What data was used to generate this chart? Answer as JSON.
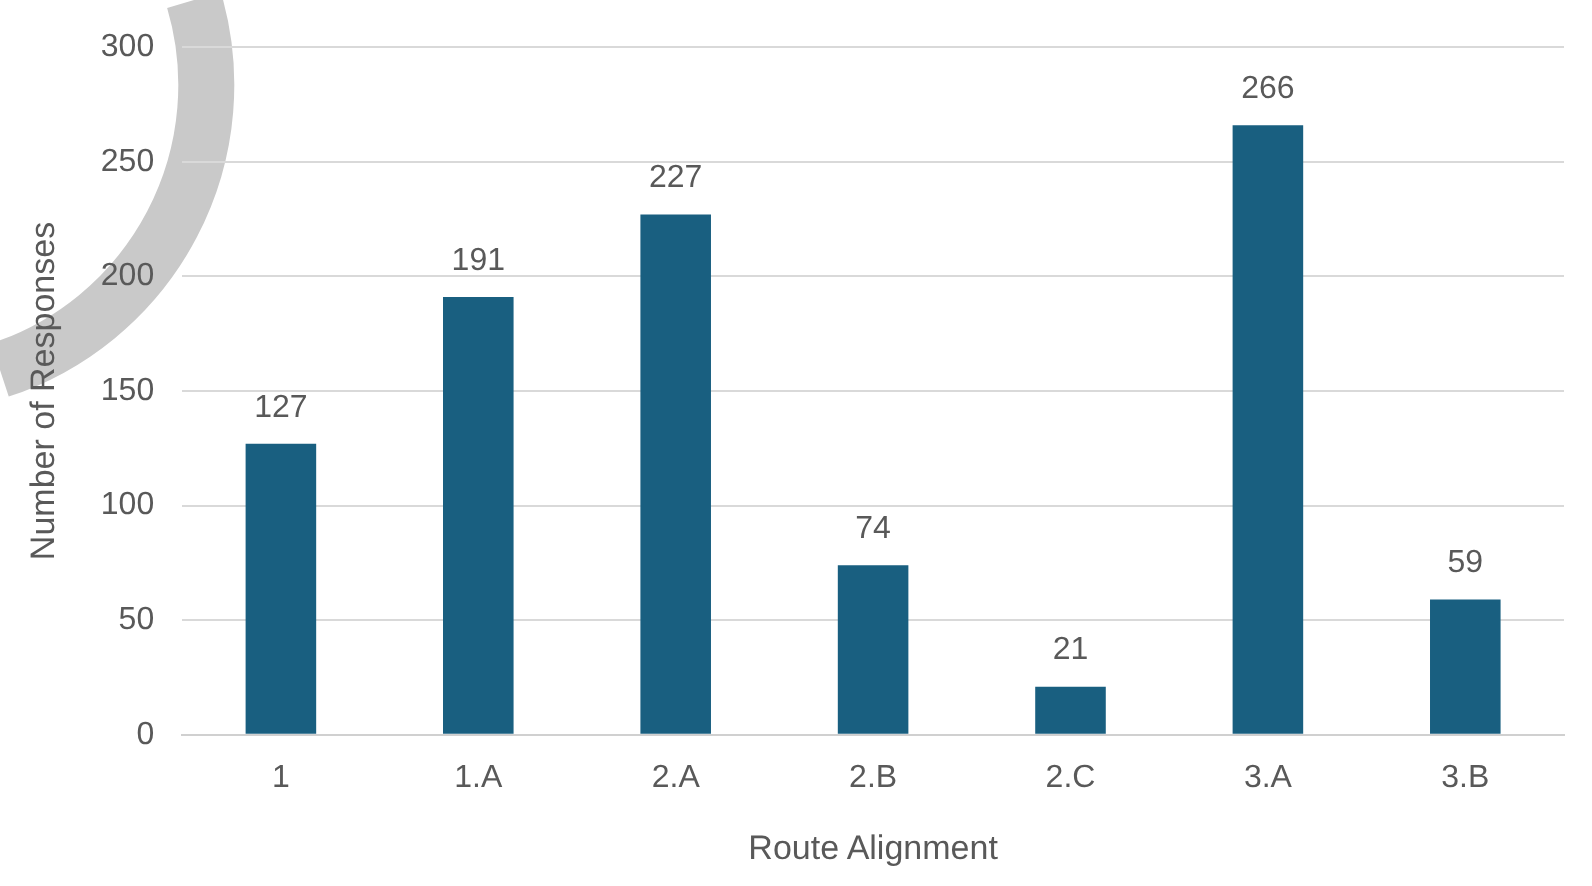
{
  "chart_data": {
    "type": "bar",
    "xlabel": "Route Alignment",
    "ylabel": "Number of Responses",
    "categories": [
      "1",
      "1.A",
      "2.A",
      "2.B",
      "2.C",
      "3.A",
      "3.B"
    ],
    "values": [
      127,
      191,
      227,
      74,
      21,
      266,
      59
    ],
    "color": "#195f80",
    "ylim": [
      0,
      300
    ],
    "yticks": [
      0,
      50,
      100,
      150,
      200,
      250,
      300
    ],
    "grid": "y",
    "data_labels": true,
    "legend": false
  }
}
